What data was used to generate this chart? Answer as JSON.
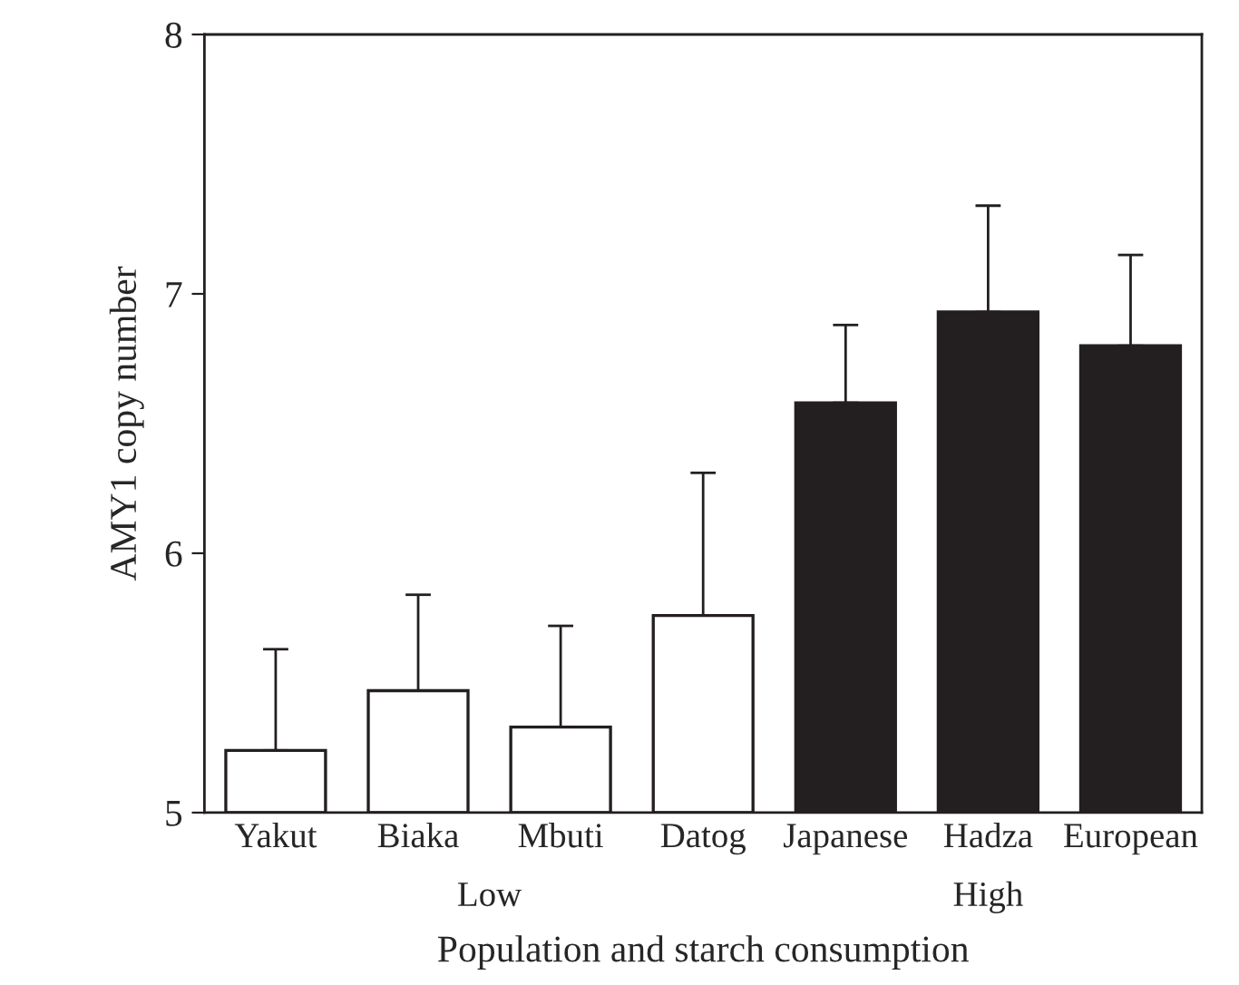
{
  "chart_data": {
    "type": "bar",
    "xlabel": "Population and starch consumption",
    "ylabel": "AMY1 copy number",
    "categories": [
      "Yakut",
      "Biaka",
      "Mbuti",
      "Datog",
      "Japanese",
      "Hadza",
      "European"
    ],
    "values": [
      5.24,
      5.47,
      5.33,
      5.76,
      6.58,
      6.93,
      6.8
    ],
    "errors": [
      [
        5.24,
        5.63
      ],
      [
        5.47,
        5.84
      ],
      [
        5.33,
        5.72
      ],
      [
        5.76,
        6.31
      ],
      [
        6.58,
        6.88
      ],
      [
        6.93,
        7.34
      ],
      [
        6.8,
        7.15
      ]
    ],
    "colors": [
      "#ffffff",
      "#ffffff",
      "#ffffff",
      "#ffffff",
      "#231f20",
      "#231f20",
      "#231f20"
    ],
    "annotations": [
      "Low",
      "High"
    ],
    "ylim": [
      5,
      8
    ],
    "yticks": [
      5,
      6,
      7,
      8
    ],
    "grid": false,
    "legend": false
  }
}
